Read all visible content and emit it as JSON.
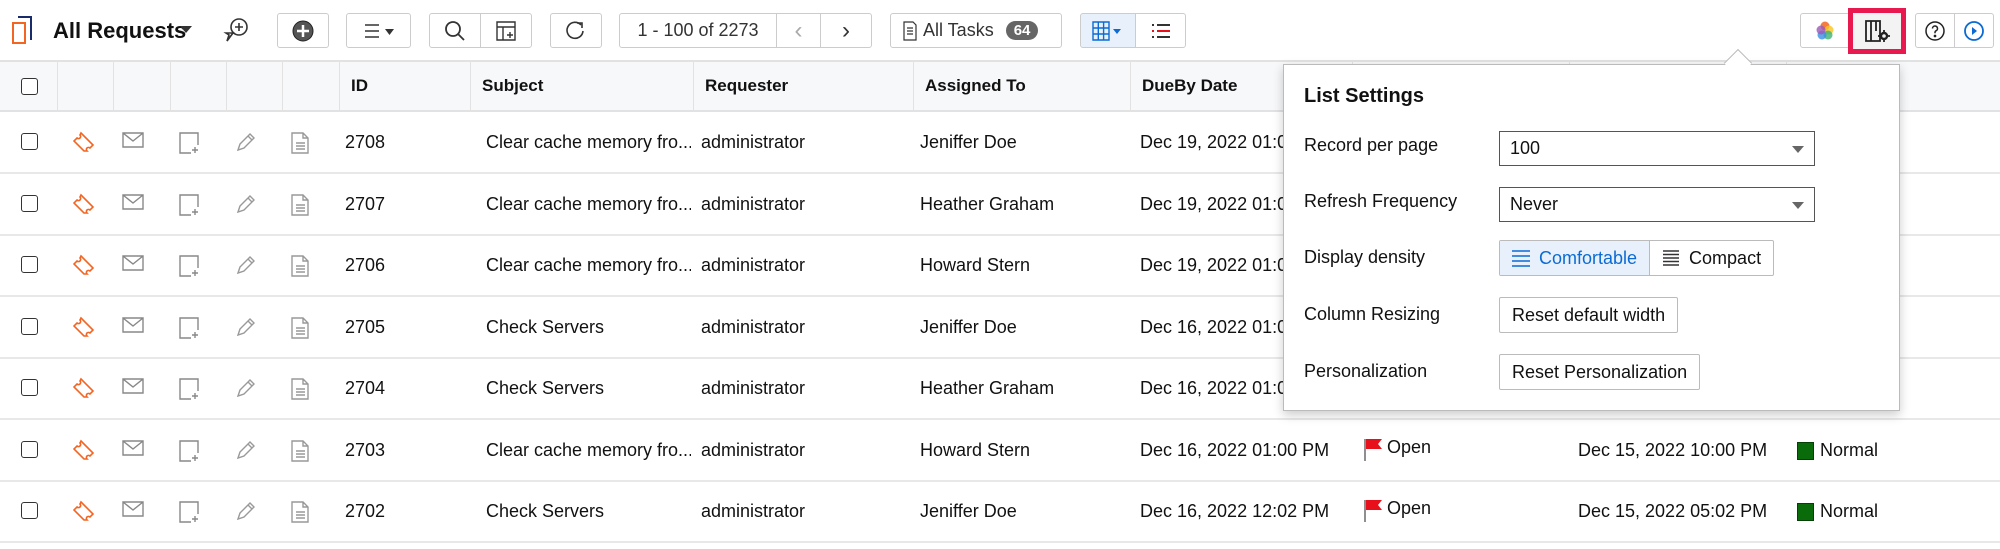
{
  "toolbar": {
    "title": "All Requests",
    "pagination": "1 - 100 of 2273",
    "all_tasks_label": "All Tasks",
    "all_tasks_count": "64"
  },
  "table": {
    "columns": [
      "ID",
      "Subject",
      "Requester",
      "Assigned To",
      "DueBy Date"
    ],
    "rows": [
      {
        "id": "2708",
        "subject": "Clear cache memory fro...",
        "requester": "administrator",
        "assigned": "Jeniffer Doe",
        "dueby": "Dec 19, 2022 01:0",
        "status": "",
        "created": "",
        "priority": ""
      },
      {
        "id": "2707",
        "subject": "Clear cache memory fro...",
        "requester": "administrator",
        "assigned": "Heather Graham",
        "dueby": "Dec 19, 2022 01:0",
        "status": "",
        "created": "",
        "priority": ""
      },
      {
        "id": "2706",
        "subject": "Clear cache memory fro...",
        "requester": "administrator",
        "assigned": "Howard Stern",
        "dueby": "Dec 19, 2022 01:0",
        "status": "",
        "created": "",
        "priority": ""
      },
      {
        "id": "2705",
        "subject": "Check Servers",
        "requester": "administrator",
        "assigned": "Jeniffer Doe",
        "dueby": "Dec 16, 2022 01:0",
        "status": "",
        "created": "",
        "priority": ""
      },
      {
        "id": "2704",
        "subject": "Check Servers",
        "requester": "administrator",
        "assigned": "Heather Graham",
        "dueby": "Dec 16, 2022 01:0",
        "status": "",
        "created": "",
        "priority": ""
      },
      {
        "id": "2703",
        "subject": "Clear cache memory fro...",
        "requester": "administrator",
        "assigned": "Howard Stern",
        "dueby": "Dec 16, 2022 01:00 PM",
        "status": "Open",
        "created": "Dec 15, 2022 10:00 PM",
        "priority": "Normal"
      },
      {
        "id": "2702",
        "subject": "Check Servers",
        "requester": "administrator",
        "assigned": "Jeniffer Doe",
        "dueby": "Dec 16, 2022 12:02 PM",
        "status": "Open",
        "created": "Dec 15, 2022 05:02 PM",
        "priority": "Normal"
      }
    ]
  },
  "list_settings": {
    "title": "List Settings",
    "record_per_page_label": "Record per page",
    "record_per_page_value": "100",
    "refresh_label": "Refresh Frequency",
    "refresh_value": "Never",
    "density_label": "Display density",
    "density_comfortable": "Comfortable",
    "density_compact": "Compact",
    "density_selected": "Comfortable",
    "column_resizing_label": "Column Resizing",
    "reset_width_button": "Reset default width",
    "personalization_label": "Personalization",
    "reset_personalization_button": "Reset Personalization"
  },
  "colors": {
    "accent": "#0b6bd3",
    "highlight": "#e8194f",
    "ticket_icon": "#f26522",
    "status_flag": "#e8101b",
    "priority_normal": "#0a6b0a"
  }
}
